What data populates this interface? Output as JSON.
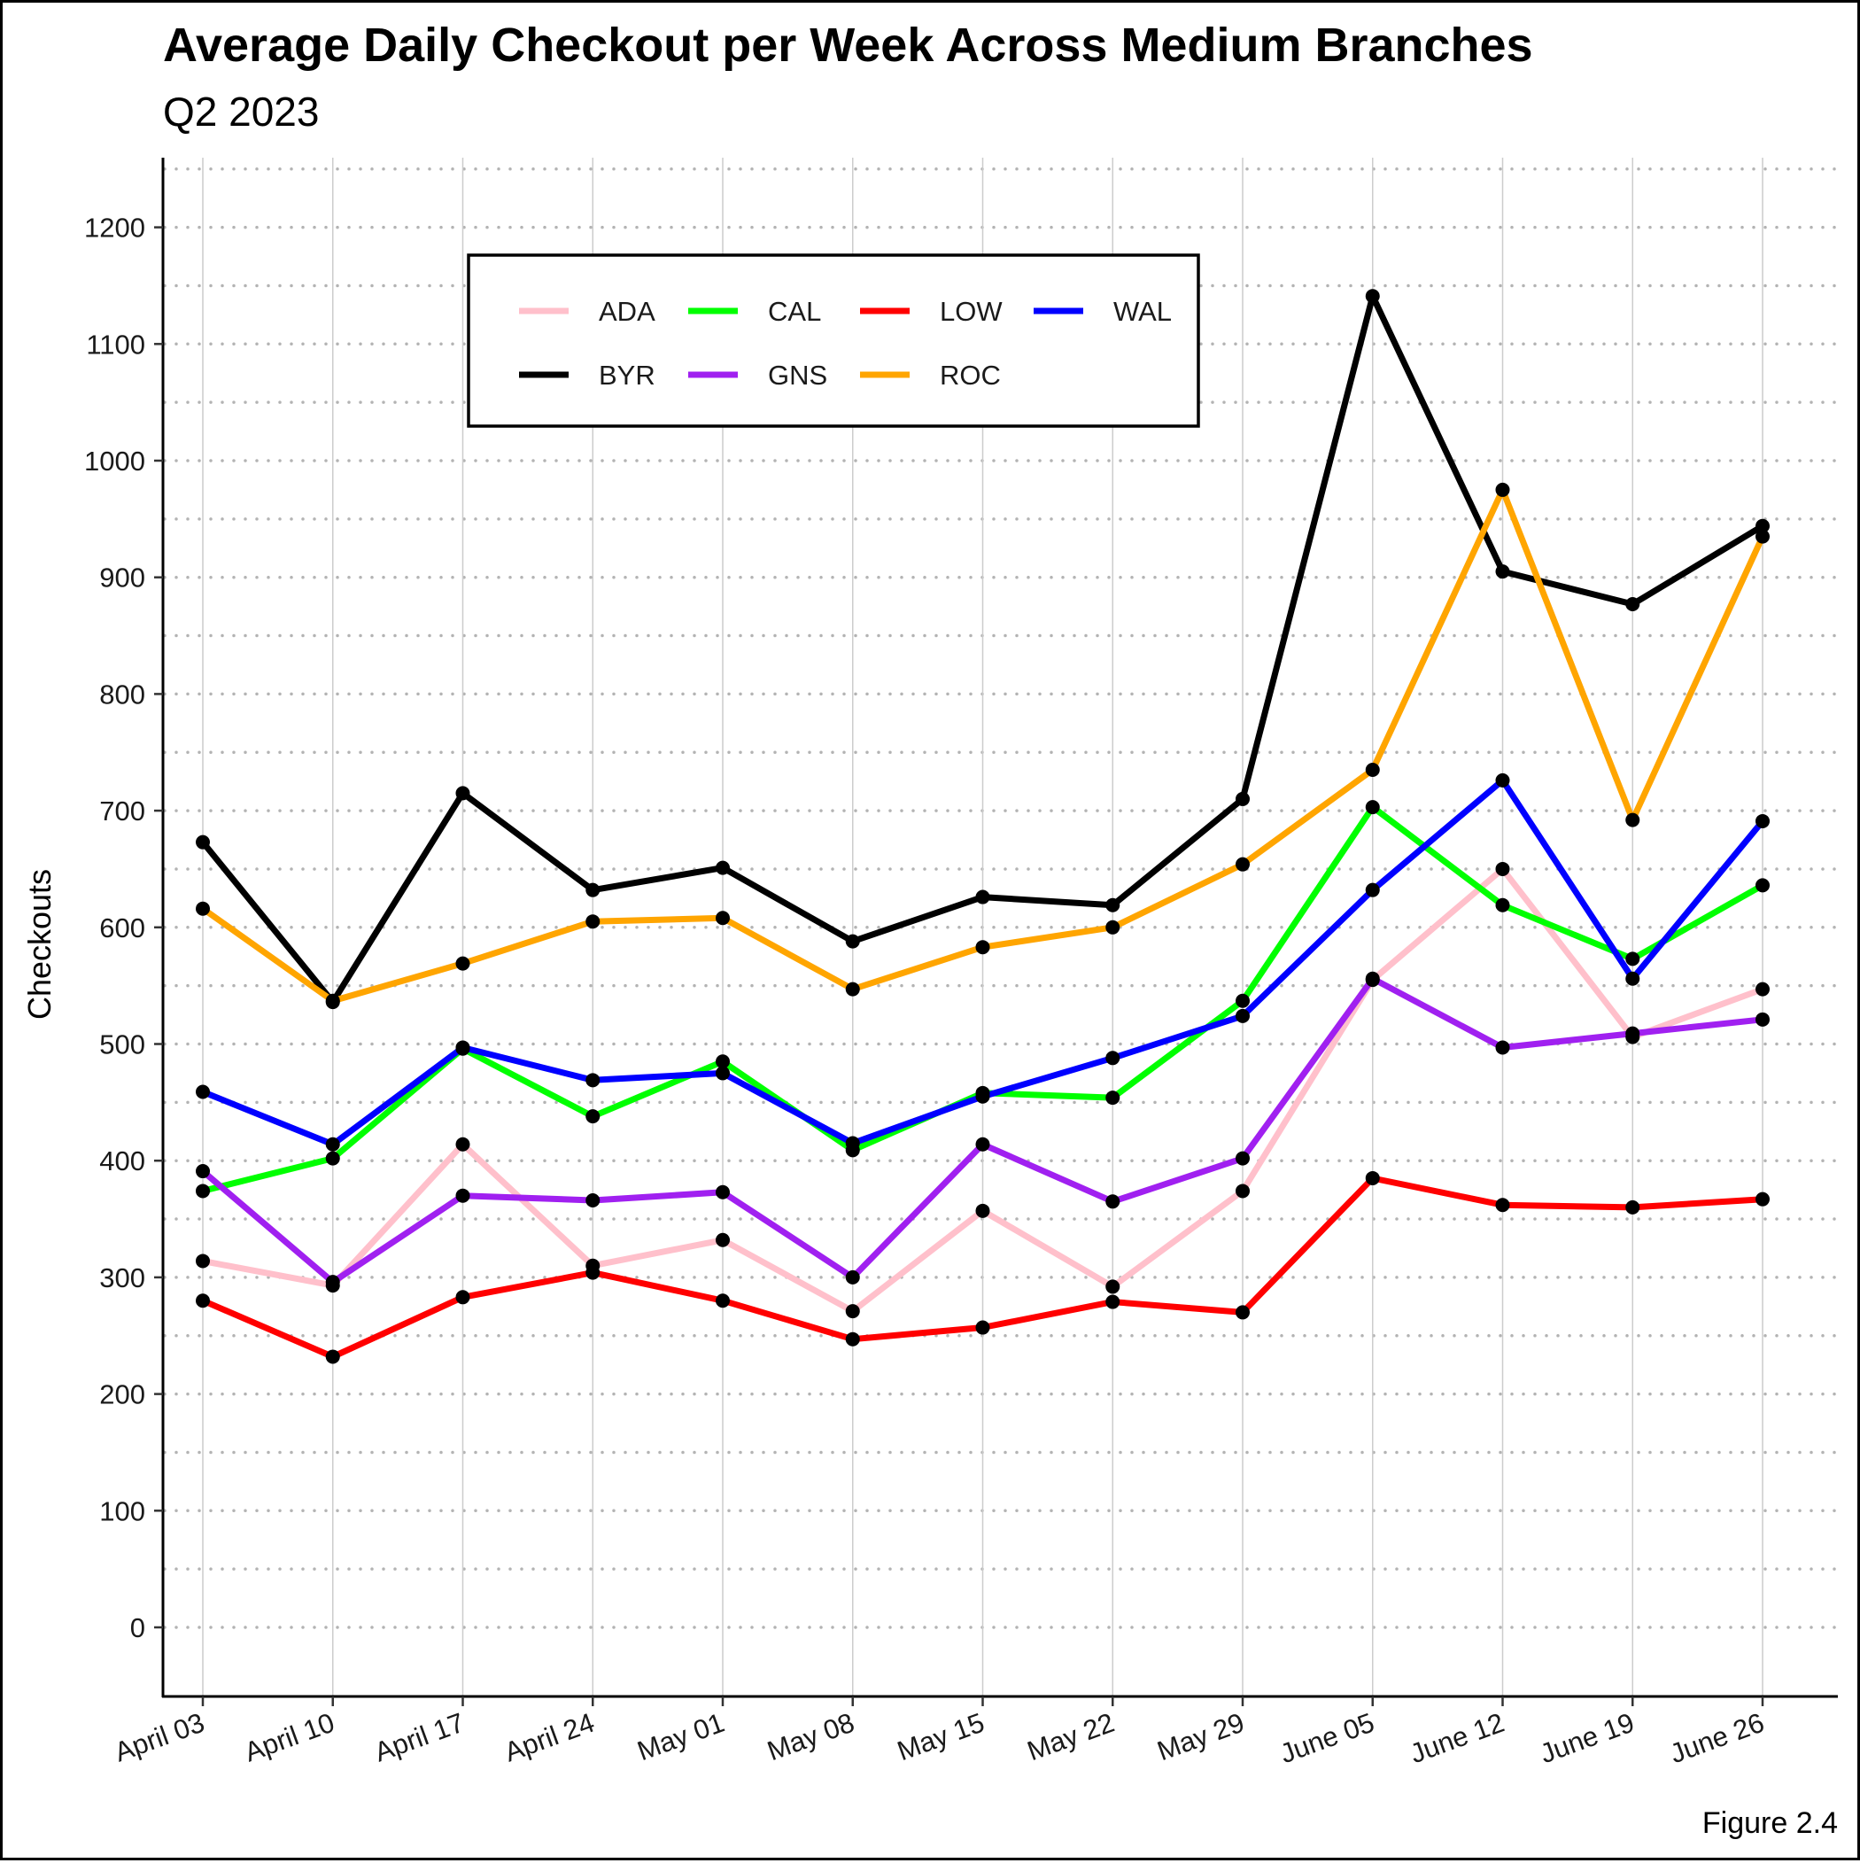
{
  "figure": {
    "title": "Average Daily Checkout per Week Across Medium Branches",
    "subtitle": "Q2 2023",
    "caption": "Figure 2.4"
  },
  "chart_data": {
    "type": "line",
    "title": "Average Daily Checkout per Week Across Medium Branches",
    "subtitle": "Q2 2023",
    "xlabel": "",
    "ylabel": "Checkouts",
    "categories": [
      "April 03",
      "April 10",
      "April 17",
      "April 24",
      "May 01",
      "May 08",
      "May 15",
      "May 22",
      "May 29",
      "June 05",
      "June 12",
      "June 19",
      "June 26"
    ],
    "ylim": [
      -60,
      1260
    ],
    "yticks": [
      0,
      100,
      200,
      300,
      400,
      500,
      600,
      700,
      800,
      900,
      1000,
      1100,
      1200
    ],
    "grid": true,
    "legend_position": "top-left inside",
    "point_color": "#000000",
    "series": [
      {
        "name": "ADA",
        "color": "#ffc0cb",
        "values": [
          314,
          293,
          414,
          310,
          332,
          271,
          357,
          292,
          374,
          555,
          650,
          506,
          547
        ]
      },
      {
        "name": "BYR",
        "color": "#000000",
        "values": [
          673,
          536,
          715,
          632,
          651,
          588,
          626,
          619,
          710,
          1141,
          905,
          877,
          944
        ]
      },
      {
        "name": "CAL",
        "color": "#00ff00",
        "values": [
          374,
          402,
          496,
          438,
          485,
          409,
          458,
          454,
          537,
          703,
          619,
          573,
          636
        ]
      },
      {
        "name": "GNS",
        "color": "#a020f0",
        "values": [
          391,
          296,
          370,
          366,
          373,
          300,
          414,
          365,
          402,
          556,
          497,
          509,
          521
        ]
      },
      {
        "name": "LOW",
        "color": "#ff0000",
        "values": [
          280,
          232,
          283,
          304,
          280,
          247,
          257,
          279,
          270,
          385,
          362,
          360,
          367
        ]
      },
      {
        "name": "ROC",
        "color": "#ffa500",
        "values": [
          616,
          537,
          569,
          605,
          608,
          547,
          583,
          600,
          654,
          735,
          975,
          692,
          935
        ]
      },
      {
        "name": "WAL",
        "color": "#0000ff",
        "values": [
          459,
          414,
          497,
          469,
          475,
          415,
          455,
          488,
          524,
          632,
          726,
          556,
          691
        ]
      }
    ]
  }
}
